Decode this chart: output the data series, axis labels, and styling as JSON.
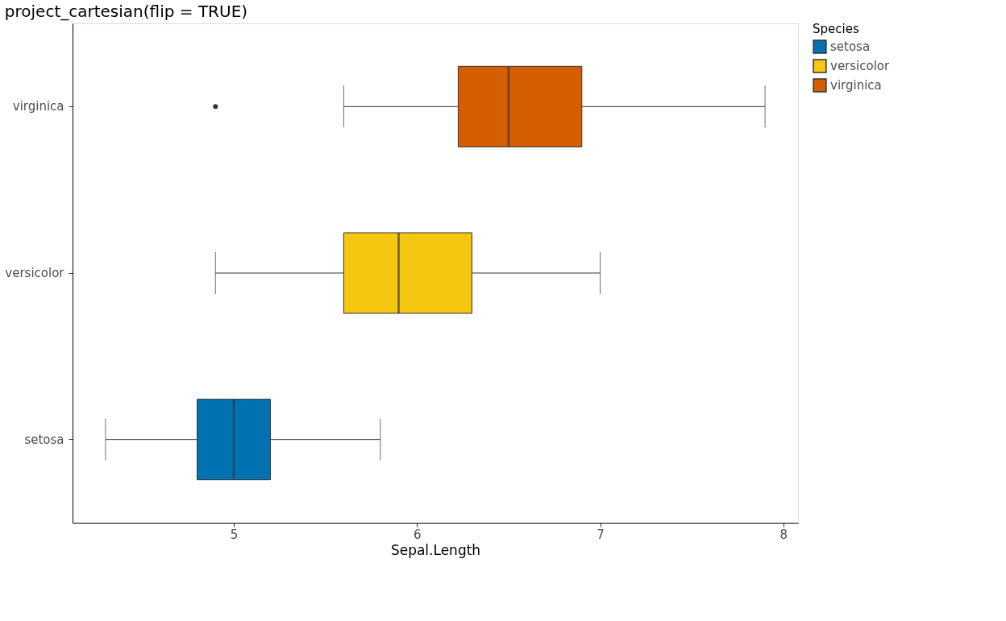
{
  "chart_data": {
    "type": "box",
    "title": "project_cartesian(flip = TRUE)",
    "xlabel": "Sepal.Length",
    "legend_title": "Species",
    "orientation": "horizontal",
    "categories": [
      "virginica",
      "versicolor",
      "setosa"
    ],
    "series": [
      {
        "name": "setosa",
        "color": "#0072b2",
        "boxes": [
          null,
          null,
          {
            "low": 4.3,
            "q1": 4.8,
            "median": 5.0,
            "q3": 5.2,
            "high": 5.8
          }
        ]
      },
      {
        "name": "versicolor",
        "color": "#f5c710",
        "boxes": [
          null,
          {
            "low": 4.9,
            "q1": 5.6,
            "median": 5.9,
            "q3": 6.3,
            "high": 7.0
          },
          null
        ]
      },
      {
        "name": "virginica",
        "color": "#d55e00",
        "boxes": [
          {
            "low": 5.6,
            "q1": 6.225,
            "median": 6.5,
            "q3": 6.9,
            "high": 7.9,
            "outliers": [
              4.9
            ]
          },
          null,
          null
        ]
      }
    ],
    "xlim": [
      4.12,
      8.08
    ],
    "xticks": [
      5,
      6,
      7,
      8
    ],
    "grid": false,
    "legend": "right"
  }
}
